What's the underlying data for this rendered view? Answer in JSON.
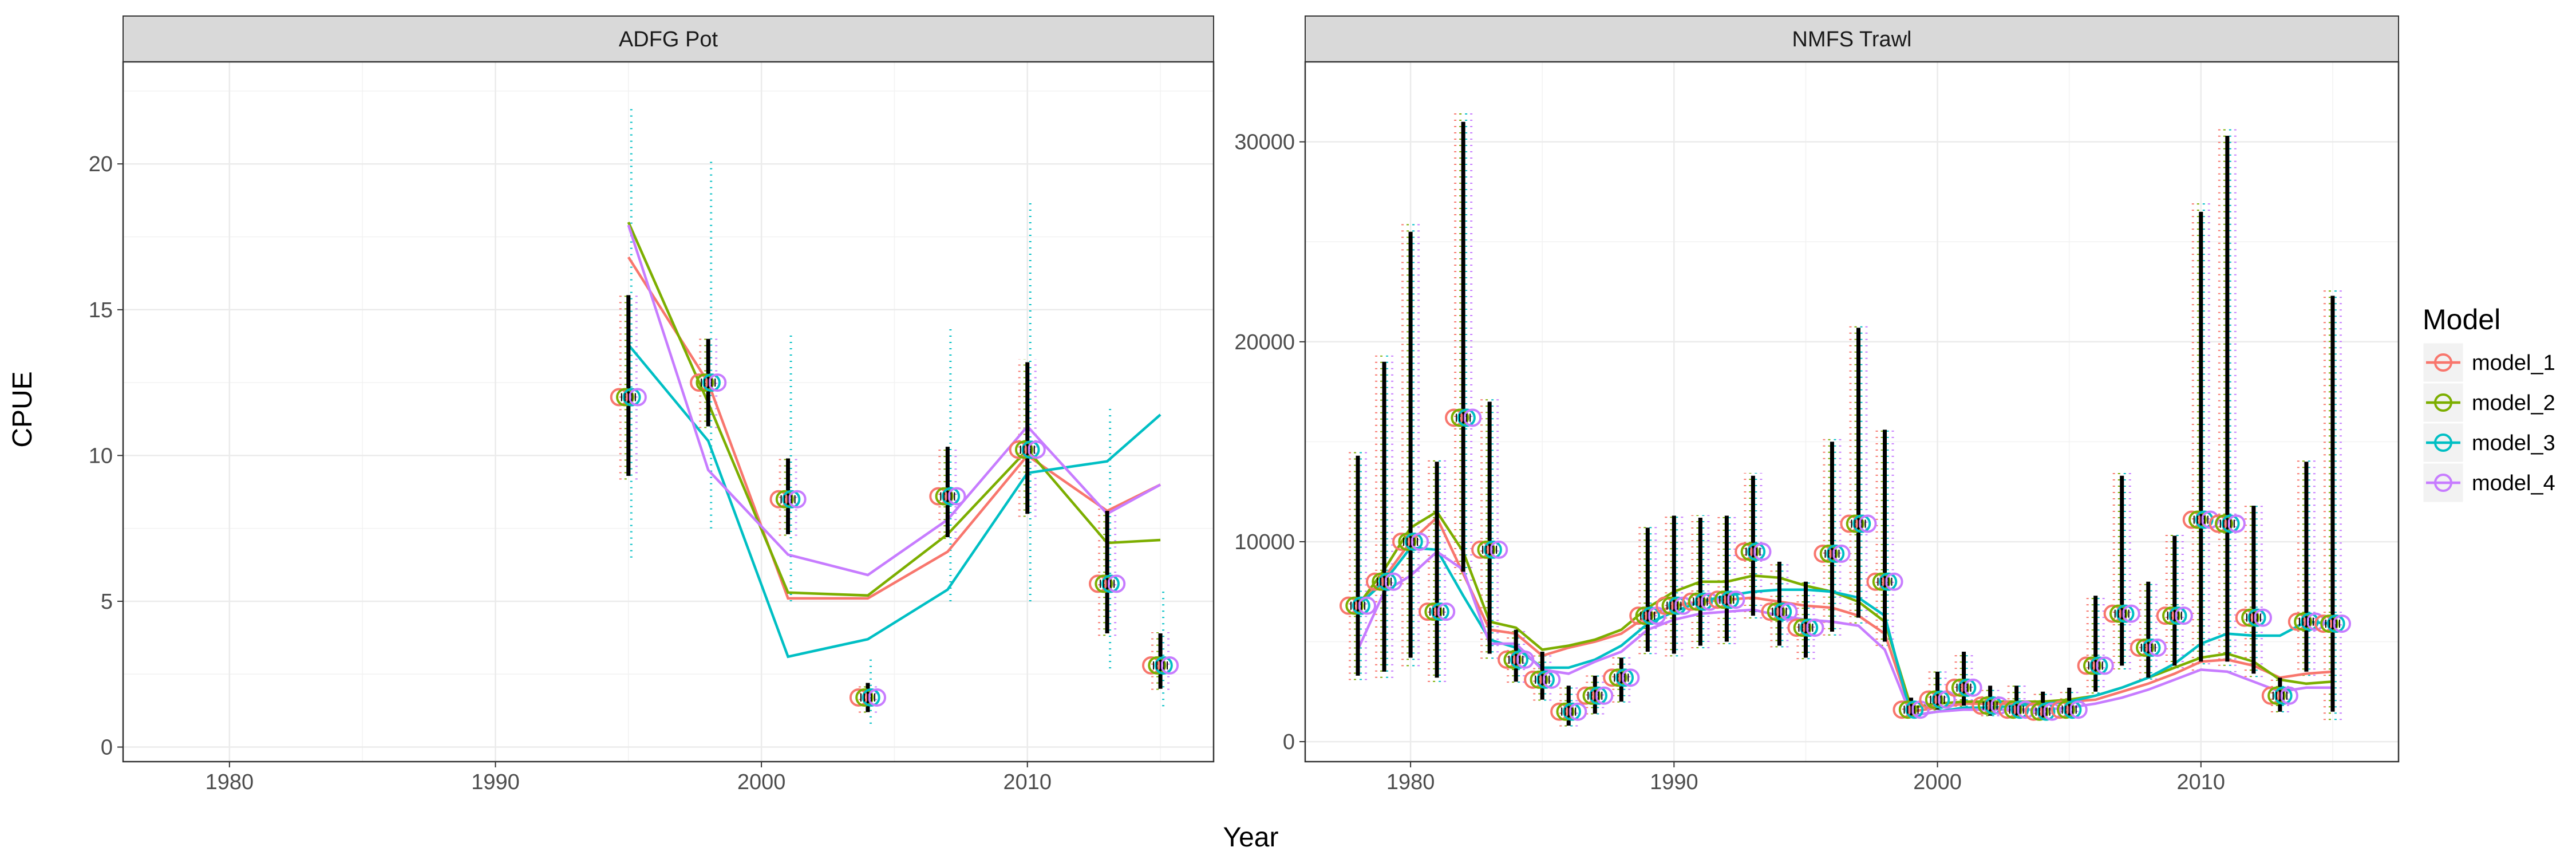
{
  "chart_data": {
    "type": "line",
    "xlabel": "Year",
    "ylabel": "CPUE",
    "legend": {
      "title": "Model",
      "placement": "right",
      "items": [
        {
          "name": "model_1",
          "color": "#F8766D"
        },
        {
          "name": "model_2",
          "color": "#7CAE00"
        },
        {
          "name": "model_3",
          "color": "#00BFC4"
        },
        {
          "name": "model_4",
          "color": "#C77CFF"
        }
      ]
    },
    "panels": [
      {
        "title": "ADFG Pot",
        "xlim": [
          1976,
          2017
        ],
        "ylim": [
          -0.5,
          23.5
        ],
        "x_ticks": [
          1980,
          1990,
          2000,
          2010
        ],
        "y_ticks": [
          0,
          5,
          10,
          15,
          20
        ],
        "observed": {
          "years": [
            1995,
            1998,
            2001,
            2004,
            2007,
            2010,
            2013,
            2015
          ],
          "values": [
            12.0,
            12.5,
            8.5,
            1.7,
            8.6,
            10.2,
            5.6,
            2.8
          ],
          "lower_black": [
            9.3,
            11.0,
            7.3,
            1.2,
            7.2,
            8.0,
            3.9,
            2.0
          ],
          "upper_black": [
            15.5,
            14.0,
            9.9,
            2.2,
            10.3,
            13.2,
            8.1,
            3.9
          ],
          "lower_wide": [
            6.5,
            7.5,
            5.0,
            0.8,
            5.0,
            5.0,
            2.7,
            1.4
          ],
          "upper_wide": [
            22.0,
            20.2,
            14.2,
            3.1,
            14.5,
            18.8,
            11.6,
            5.5
          ]
        },
        "series": [
          {
            "name": "model_1",
            "x": [
              1995,
              1998,
              2001,
              2004,
              2007,
              2010,
              2013,
              2015
            ],
            "values": [
              16.8,
              12.5,
              5.1,
              5.1,
              6.7,
              10.0,
              8.1,
              9.0
            ]
          },
          {
            "name": "model_2",
            "x": [
              1995,
              1998,
              2001,
              2004,
              2007,
              2010,
              2013,
              2015
            ],
            "values": [
              18.0,
              11.8,
              5.3,
              5.2,
              7.3,
              10.2,
              7.0,
              7.1
            ]
          },
          {
            "name": "model_3",
            "x": [
              1995,
              1998,
              2001,
              2004,
              2007,
              2010,
              2013,
              2015
            ],
            "values": [
              13.8,
              10.5,
              3.1,
              3.7,
              5.4,
              9.4,
              9.8,
              11.4
            ]
          },
          {
            "name": "model_4",
            "x": [
              1995,
              1998,
              2001,
              2004,
              2007,
              2010,
              2013,
              2015
            ],
            "values": [
              17.9,
              9.5,
              6.6,
              5.9,
              7.8,
              11.0,
              8.0,
              9.0
            ]
          }
        ]
      },
      {
        "title": "NMFS Trawl",
        "xlim": [
          1976,
          2017.5
        ],
        "ylim": [
          -1000,
          34000
        ],
        "x_ticks": [
          1980,
          1990,
          2000,
          2010
        ],
        "y_ticks": [
          0,
          10000,
          20000,
          30000
        ],
        "observed": {
          "years": [
            1978,
            1979,
            1980,
            1981,
            1982,
            1983,
            1984,
            1985,
            1986,
            1987,
            1988,
            1989,
            1990,
            1991,
            1992,
            1993,
            1994,
            1995,
            1996,
            1997,
            1998,
            1999,
            2000,
            2001,
            2002,
            2003,
            2004,
            2005,
            2006,
            2007,
            2008,
            2009,
            2010,
            2011,
            2012,
            2013,
            2014,
            2015
          ],
          "values": [
            6800,
            8000,
            10000,
            6500,
            16200,
            9600,
            4100,
            3100,
            1500,
            2300,
            3200,
            6300,
            6800,
            7000,
            7100,
            9500,
            6500,
            5700,
            9400,
            10900,
            8000,
            1600,
            2100,
            2700,
            1800,
            1600,
            1500,
            1600,
            3800,
            6400,
            4700,
            6300,
            11100,
            10900,
            6200,
            2300,
            6000,
            5900
          ],
          "lower_black": [
            3300,
            3500,
            4200,
            3200,
            8500,
            4400,
            3000,
            2100,
            800,
            1400,
            2000,
            4500,
            4400,
            4800,
            5000,
            6300,
            4800,
            4200,
            5500,
            6200,
            5000,
            1300,
            1600,
            1800,
            1300,
            1200,
            1100,
            1200,
            2500,
            3800,
            3200,
            3800,
            4000,
            4000,
            3400,
            1500,
            3500,
            1500
          ],
          "upper_black": [
            14300,
            19000,
            25500,
            14000,
            31000,
            17000,
            5600,
            4500,
            2800,
            3300,
            4200,
            10700,
            11300,
            11200,
            11300,
            13300,
            9000,
            8000,
            15000,
            20700,
            15600,
            2200,
            3500,
            4500,
            2800,
            2800,
            2500,
            2700,
            7300,
            13300,
            8000,
            10300,
            26500,
            30300,
            11800,
            3200,
            14000,
            22300
          ]
        },
        "series": [
          {
            "name": "model_1",
            "x": [
              1978,
              1979,
              1980,
              1981,
              1982,
              1983,
              1984,
              1985,
              1986,
              1987,
              1988,
              1989,
              1990,
              1991,
              1992,
              1993,
              1994,
              1995,
              1996,
              1997,
              1998,
              1999,
              2000,
              2001,
              2002,
              2003,
              2004,
              2005,
              2006,
              2007,
              2008,
              2009,
              2010,
              2011,
              2012,
              2013,
              2014,
              2015
            ],
            "values": [
              6800,
              8200,
              10000,
              11200,
              8400,
              5600,
              5400,
              4300,
              4700,
              5000,
              5400,
              6300,
              6800,
              7000,
              7100,
              7200,
              7000,
              6800,
              6700,
              6300,
              5400,
              1500,
              1700,
              1900,
              1900,
              1900,
              1900,
              2000,
              2100,
              2500,
              2900,
              3400,
              4000,
              4100,
              3800,
              3200,
              3400,
              3500
            ]
          },
          {
            "name": "model_2",
            "x": [
              1978,
              1979,
              1980,
              1981,
              1982,
              1983,
              1984,
              1985,
              1986,
              1987,
              1988,
              1989,
              1990,
              1991,
              1992,
              1993,
              1994,
              1995,
              1996,
              1997,
              1998,
              1999,
              2000,
              2001,
              2002,
              2003,
              2004,
              2005,
              2006,
              2007,
              2008,
              2009,
              2010,
              2011,
              2012,
              2013,
              2014,
              2015
            ],
            "values": [
              6800,
              8600,
              10700,
              11500,
              9500,
              6000,
              5700,
              4600,
              4800,
              5100,
              5600,
              6700,
              7500,
              8000,
              8000,
              8300,
              8200,
              7800,
              7500,
              7000,
              6000,
              1700,
              1900,
              2000,
              2000,
              2000,
              2000,
              2100,
              2300,
              2700,
              3200,
              3700,
              4200,
              4400,
              4000,
              3100,
              2900,
              3000
            ]
          },
          {
            "name": "model_3",
            "x": [
              1978,
              1979,
              1980,
              1981,
              1982,
              1983,
              1984,
              1985,
              1986,
              1987,
              1988,
              1989,
              1990,
              1991,
              1992,
              1993,
              1994,
              1995,
              1996,
              1997,
              1998,
              1999,
              2000,
              2001,
              2002,
              2003,
              2004,
              2005,
              2006,
              2007,
              2008,
              2009,
              2010,
              2011,
              2012,
              2013,
              2014,
              2015
            ],
            "values": [
              6800,
              8000,
              9700,
              9600,
              7300,
              5100,
              4700,
              3700,
              3700,
              4100,
              4800,
              5900,
              6500,
              7000,
              7300,
              7500,
              7600,
              7600,
              7500,
              7200,
              6300,
              1300,
              1500,
              1700,
              1700,
              1800,
              1900,
              2000,
              2300,
              2700,
              3200,
              3900,
              4900,
              5400,
              5300,
              5300,
              6000,
              5900
            ]
          },
          {
            "name": "model_4",
            "x": [
              1978,
              1979,
              1980,
              1981,
              1982,
              1983,
              1984,
              1985,
              1986,
              1987,
              1988,
              1989,
              1990,
              1991,
              1992,
              1993,
              1994,
              1995,
              1996,
              1997,
              1998,
              1999,
              2000,
              2001,
              2002,
              2003,
              2004,
              2005,
              2006,
              2007,
              2008,
              2009,
              2010,
              2011,
              2012,
              2013,
              2014,
              2015
            ],
            "values": [
              4600,
              7500,
              8300,
              9500,
              8600,
              4900,
              4900,
              3600,
              3400,
              4000,
              4500,
              5600,
              6100,
              6400,
              6500,
              6600,
              6300,
              6100,
              6000,
              5800,
              4600,
              1300,
              1500,
              1600,
              1600,
              1600,
              1600,
              1700,
              1900,
              2200,
              2600,
              3100,
              3600,
              3500,
              3000,
              2500,
              2700,
              2700
            ]
          }
        ]
      }
    ]
  }
}
